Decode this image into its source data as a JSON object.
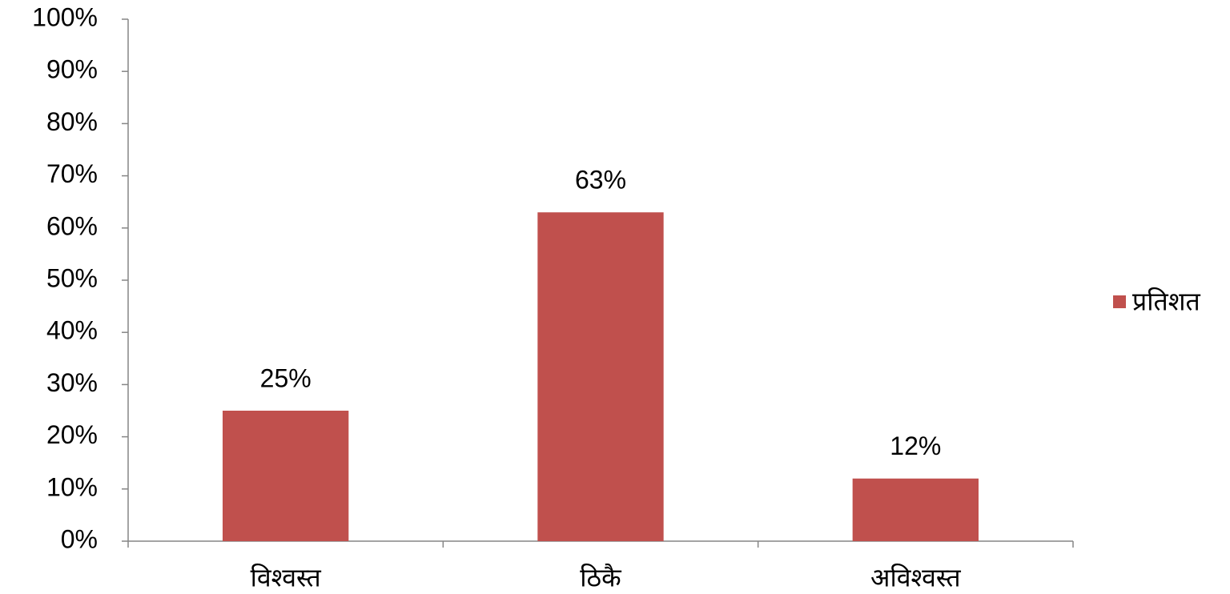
{
  "chart_data": {
    "type": "bar",
    "categories": [
      "विश्वस्त",
      "ठिकै",
      "अविश्वस्त"
    ],
    "series": [
      {
        "name": "प्रतिशत",
        "color": "#c0504d",
        "values": [
          25,
          63,
          12
        ],
        "value_labels": [
          "25%",
          "63%",
          "12%"
        ]
      }
    ],
    "ylim": [
      0,
      100
    ],
    "yticks": [
      {
        "value": 0,
        "label": "0%"
      },
      {
        "value": 10,
        "label": "10%"
      },
      {
        "value": 20,
        "label": "20%"
      },
      {
        "value": 30,
        "label": "30%"
      },
      {
        "value": 40,
        "label": "40%"
      },
      {
        "value": 50,
        "label": "50%"
      },
      {
        "value": 60,
        "label": "60%"
      },
      {
        "value": 70,
        "label": "70%"
      },
      {
        "value": 80,
        "label": "80%"
      },
      {
        "value": 90,
        "label": "90%"
      },
      {
        "value": 100,
        "label": "100%"
      }
    ],
    "grid": false,
    "legend": "right"
  }
}
